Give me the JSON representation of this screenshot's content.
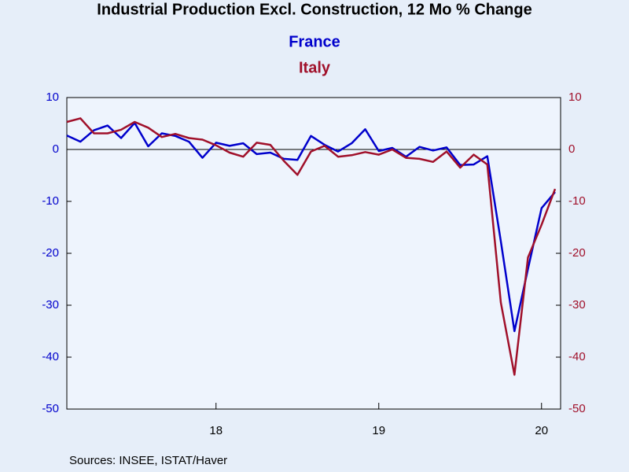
{
  "chart_data": {
    "type": "line",
    "title": "Industrial Production Excl. Construction, 12 Mo % Change",
    "source": "Sources:  INSEE, ISTAT/Haver",
    "categories": [
      null,
      null,
      null,
      null,
      null,
      null,
      null,
      null,
      null,
      null,
      null,
      "18",
      null,
      null,
      null,
      null,
      null,
      null,
      null,
      null,
      null,
      null,
      null,
      "19",
      null,
      null,
      null,
      null,
      null,
      null,
      null,
      null,
      null,
      null,
      null,
      "20",
      null
    ],
    "series": [
      {
        "name": "France",
        "color": "#0000cc",
        "values": [
          2.7,
          1.5,
          3.7,
          4.6,
          2.2,
          5.1,
          0.6,
          3.1,
          2.6,
          1.5,
          -1.6,
          1.3,
          0.7,
          1.2,
          -0.9,
          -0.6,
          -1.8,
          -2.0,
          2.6,
          0.9,
          -0.4,
          1.2,
          3.9,
          -0.3,
          0.3,
          -1.4,
          0.5,
          -0.2,
          0.4,
          -3.0,
          -2.9,
          -1.3,
          -17.7,
          -35.0,
          -23.0,
          -11.3,
          -8.2
        ]
      },
      {
        "name": "Italy",
        "color": "#a0102a",
        "values": [
          5.3,
          6.0,
          3.1,
          3.1,
          3.8,
          5.3,
          4.2,
          2.4,
          3.0,
          2.2,
          1.9,
          0.8,
          -0.6,
          -1.4,
          1.3,
          0.9,
          -2.2,
          -4.9,
          -0.4,
          0.7,
          -1.4,
          -1.1,
          -0.5,
          -1.0,
          0.0,
          -1.6,
          -1.8,
          -2.4,
          -0.4,
          -3.5,
          -1.0,
          -2.9,
          -29.5,
          -43.4,
          -20.8,
          -14.5,
          -7.6
        ]
      }
    ],
    "ylim": [
      -50,
      10
    ],
    "yticks": [
      10,
      0,
      -10,
      -20,
      -30,
      -40,
      -50
    ],
    "y2lim": [
      -50,
      10
    ],
    "y2ticks": [
      10,
      0,
      -10,
      -20,
      -30,
      -40,
      -50
    ],
    "zero_line": true
  }
}
